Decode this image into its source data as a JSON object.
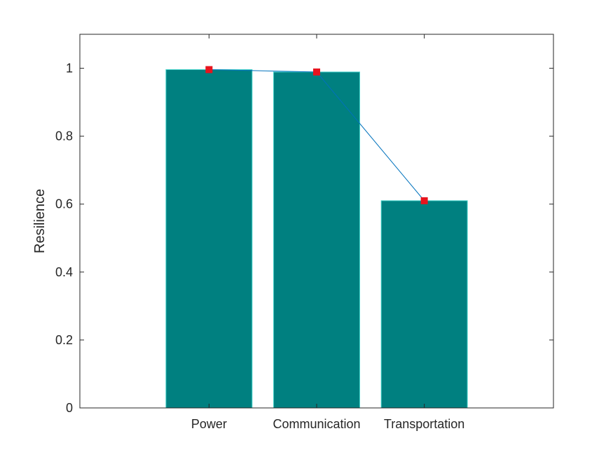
{
  "chart_data": {
    "type": "bar",
    "categories": [
      "Power",
      "Communication",
      "Transportation"
    ],
    "values": [
      0.996,
      0.989,
      0.61
    ],
    "line_values": [
      0.996,
      0.989,
      0.61
    ],
    "ylabel": "Resilience",
    "xlabel": "",
    "title": "",
    "ylim": [
      0,
      1.1
    ],
    "xlim": [
      -0.2,
      4.2
    ],
    "yticks": [
      0,
      0.2,
      0.4,
      0.6,
      0.8,
      1
    ],
    "ytick_labels": [
      "0",
      "0.2",
      "0.4",
      "0.6",
      "0.8",
      "1"
    ],
    "grid": false,
    "box": true,
    "colors": {
      "bar_fill": "#008080",
      "bar_edge": "#40d0c8",
      "line": "#0072bd",
      "marker": "#e8141e",
      "axis": "#262626"
    }
  }
}
